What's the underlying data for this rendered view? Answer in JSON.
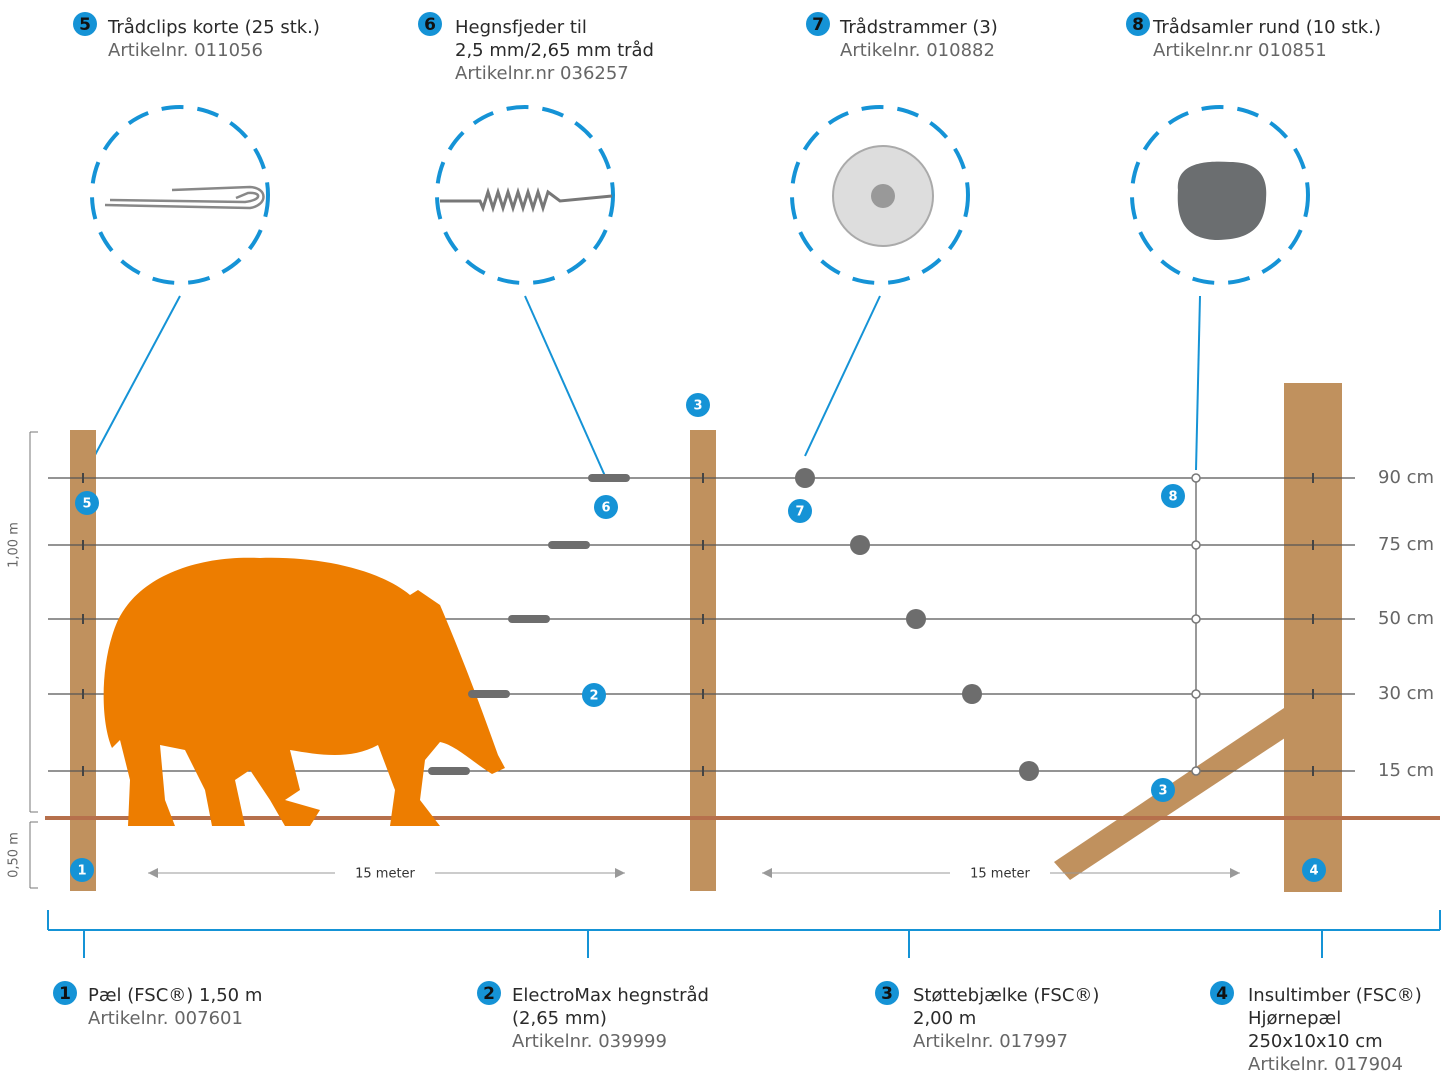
{
  "top_items": [
    {
      "number": "5",
      "title_lines": [
        "Trådclips korte (25 stk.)"
      ],
      "article": "Artikelnr. 011056"
    },
    {
      "number": "6",
      "title_lines": [
        "Hegnsfjeder til",
        "2,5 mm/2,65 mm tråd"
      ],
      "article": "Artikelnr.nr 036257"
    },
    {
      "number": "7",
      "title_lines": [
        "Trådstrammer (3)"
      ],
      "article": "Artikelnr. 010882"
    },
    {
      "number": "8",
      "title_lines": [
        "Trådsamler rund (10 stk.)"
      ],
      "article": "Artikelnr.nr 010851"
    }
  ],
  "bottom_items": [
    {
      "number": "1",
      "title_lines": [
        "Pæl (FSC®) 1,50 m"
      ],
      "article": "Artikelnr. 007601"
    },
    {
      "number": "2",
      "title_lines": [
        "ElectroMax hegnstråd",
        "(2,65 mm)"
      ],
      "article": "Artikelnr. 039999"
    },
    {
      "number": "3",
      "title_lines": [
        "Støttebjælke  (FSC®)",
        "2,00 m"
      ],
      "article": "Artikelnr. 017997"
    },
    {
      "number": "4",
      "title_lines": [
        "Insultimber (FSC®)",
        "Hjørnepæl",
        "250x10x10 cm"
      ],
      "article": "Artikelnr. 017904"
    }
  ],
  "wire_heights": [
    "90 cm",
    "75 cm",
    "50 cm",
    "30 cm",
    "15 cm"
  ],
  "dimensions": {
    "height_above": "1,00 m",
    "height_below": "0,50 m",
    "span_left": "15 meter",
    "span_right": "15 meter"
  },
  "diagram_badges": [
    "5",
    "6",
    "7",
    "8",
    "2",
    "3",
    "3",
    "1",
    "4"
  ]
}
